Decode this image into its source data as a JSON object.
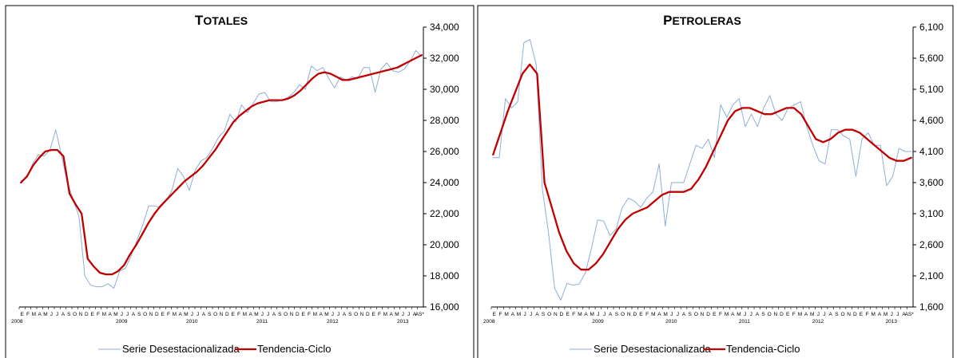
{
  "chart_data": [
    {
      "type": "line",
      "title_big": "T",
      "title_small": "OTALES",
      "ylim": [
        16000,
        34000
      ],
      "yticks": [
        "16,000",
        "18,000",
        "20,000",
        "22,000",
        "24,000",
        "26,000",
        "28,000",
        "30,000",
        "32,000",
        "34,000"
      ],
      "month_letters": [
        "E",
        "F",
        "M",
        "A",
        "M",
        "J",
        "J",
        "A",
        "S",
        "O",
        "N",
        "D"
      ],
      "year_labels": [
        "2008",
        "2009",
        "2010",
        "2011",
        "2012",
        "2013"
      ],
      "last_tick": "AS*",
      "legend": [
        "Serie Desestacionalizada",
        "Tendencia-Ciclo"
      ],
      "series": [
        {
          "name": "Serie Desestacionalizada",
          "color": "#8eaed8",
          "values": [
            24100,
            24300,
            25200,
            25800,
            25700,
            26100,
            27400,
            25700,
            24000,
            22900,
            21800,
            18000,
            17400,
            17300,
            17300,
            17500,
            17200,
            18300,
            18500,
            19300,
            20300,
            21300,
            22500,
            22500,
            22400,
            22800,
            23500,
            24900,
            24400,
            23500,
            24800,
            25400,
            25600,
            26200,
            26900,
            27300,
            28400,
            27900,
            29000,
            28500,
            29100,
            29700,
            29800,
            29200,
            29200,
            29300,
            29500,
            29800,
            30300,
            30000,
            31500,
            31200,
            31400,
            30700,
            30100,
            30800,
            30600,
            30800,
            30700,
            31400,
            31400,
            29800,
            31300,
            31700,
            31200,
            31100,
            31300,
            31800,
            32500,
            32100
          ]
        },
        {
          "name": "Tendencia-Ciclo",
          "color": "#c00000",
          "values": [
            24000,
            24400,
            25100,
            25600,
            26000,
            26100,
            26100,
            25700,
            23300,
            22600,
            22000,
            19100,
            18600,
            18200,
            18100,
            18100,
            18300,
            18700,
            19400,
            20000,
            20700,
            21400,
            22000,
            22500,
            22900,
            23300,
            23700,
            24100,
            24400,
            24700,
            25100,
            25600,
            26100,
            26700,
            27300,
            27900,
            28300,
            28600,
            28900,
            29100,
            29200,
            29300,
            29300,
            29300,
            29400,
            29600,
            29900,
            30300,
            30700,
            31000,
            31100,
            31000,
            30800,
            30600,
            30600,
            30700,
            30800,
            30900,
            31000,
            31100,
            31200,
            31300,
            31400,
            31600,
            31800,
            32000,
            32200
          ]
        }
      ]
    },
    {
      "type": "line",
      "title_big": "P",
      "title_small": "ETROLERAS",
      "ylim": [
        1600,
        6100
      ],
      "yticks": [
        "1,600",
        "2,100",
        "2,600",
        "3,100",
        "3,600",
        "4,100",
        "4,600",
        "5,100",
        "5,600",
        "6,100"
      ],
      "month_letters": [
        "E",
        "F",
        "M",
        "A",
        "M",
        "J",
        "J",
        "A",
        "S",
        "O",
        "N",
        "D"
      ],
      "year_labels": [
        "2008",
        "2009",
        "2010",
        "2011",
        "2012",
        "2013"
      ],
      "last_tick": "AS*",
      "legend": [
        "Serie Desestacionalizada",
        "Tendencia-Ciclo"
      ],
      "series": [
        {
          "name": "Serie Desestacionalizada",
          "color": "#8eaed8",
          "values": [
            4000,
            4000,
            4950,
            4800,
            4900,
            5850,
            5900,
            5500,
            3500,
            2800,
            1900,
            1710,
            1980,
            1950,
            1970,
            2150,
            2550,
            3000,
            2980,
            2750,
            2850,
            3200,
            3350,
            3300,
            3200,
            3350,
            3450,
            3900,
            2900,
            3600,
            3600,
            3600,
            3900,
            4200,
            4150,
            4300,
            4000,
            4850,
            4650,
            4850,
            4950,
            4500,
            4700,
            4500,
            4800,
            5000,
            4700,
            4600,
            4800,
            4850,
            4900,
            4500,
            4200,
            3950,
            3900,
            4450,
            4450,
            4350,
            4300,
            3700,
            4300,
            4400,
            4200,
            4200,
            3550,
            3700,
            4150,
            4100,
            4100
          ]
        },
        {
          "name": "Tendencia-Ciclo",
          "color": "#c00000",
          "values": [
            4050,
            4400,
            4750,
            5050,
            5350,
            5500,
            5350,
            3600,
            3200,
            2800,
            2500,
            2300,
            2200,
            2200,
            2300,
            2450,
            2650,
            2850,
            3000,
            3100,
            3150,
            3200,
            3300,
            3400,
            3450,
            3450,
            3450,
            3500,
            3650,
            3850,
            4100,
            4350,
            4600,
            4750,
            4800,
            4800,
            4750,
            4700,
            4700,
            4750,
            4800,
            4800,
            4700,
            4500,
            4300,
            4250,
            4300,
            4400,
            4450,
            4450,
            4400,
            4300,
            4200,
            4100,
            4000,
            3950,
            3950,
            4000
          ]
        }
      ]
    }
  ]
}
